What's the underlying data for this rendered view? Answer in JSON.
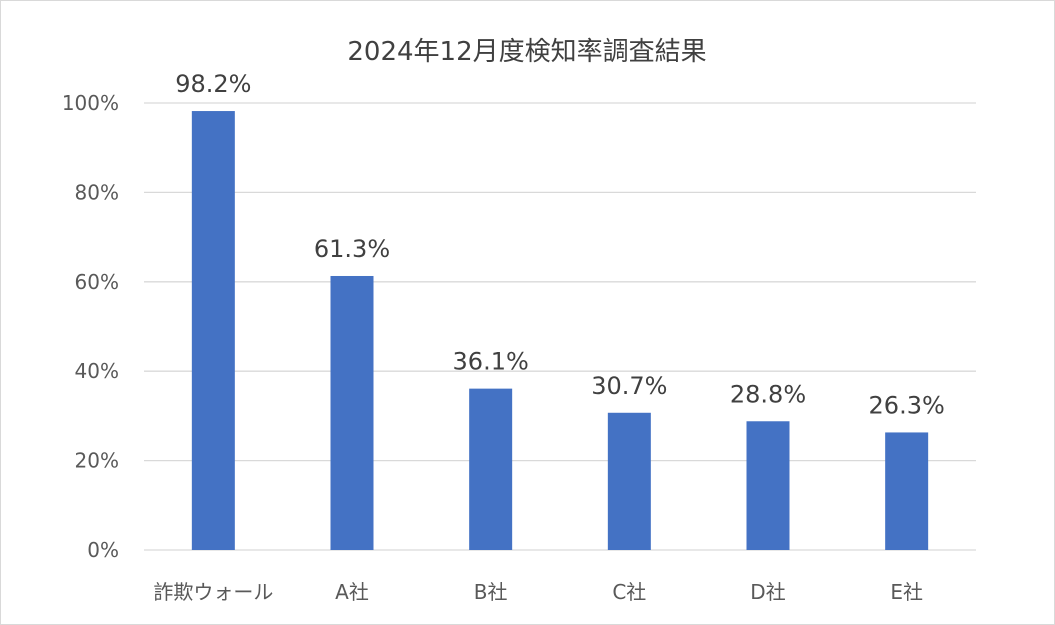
{
  "chart_data": {
    "type": "bar",
    "title": "2024年12月度検知率調査結果",
    "categories": [
      "詐欺ウォール",
      "A社",
      "B社",
      "C社",
      "D社",
      "E社"
    ],
    "values": [
      98.2,
      61.3,
      36.1,
      30.7,
      28.8,
      26.3
    ],
    "data_labels": [
      "98.2%",
      "61.3%",
      "36.1%",
      "30.7%",
      "28.8%",
      "26.3%"
    ],
    "ylim": [
      0,
      100
    ],
    "y_ticks": [
      0,
      20,
      40,
      60,
      80,
      100
    ],
    "y_tick_labels": [
      "0%",
      "20%",
      "40%",
      "60%",
      "80%",
      "100%"
    ],
    "xlabel": "",
    "ylabel": "",
    "grid": true,
    "legend": "none",
    "bar_color": "#4472c4",
    "grid_color": "#d9d9d9"
  }
}
